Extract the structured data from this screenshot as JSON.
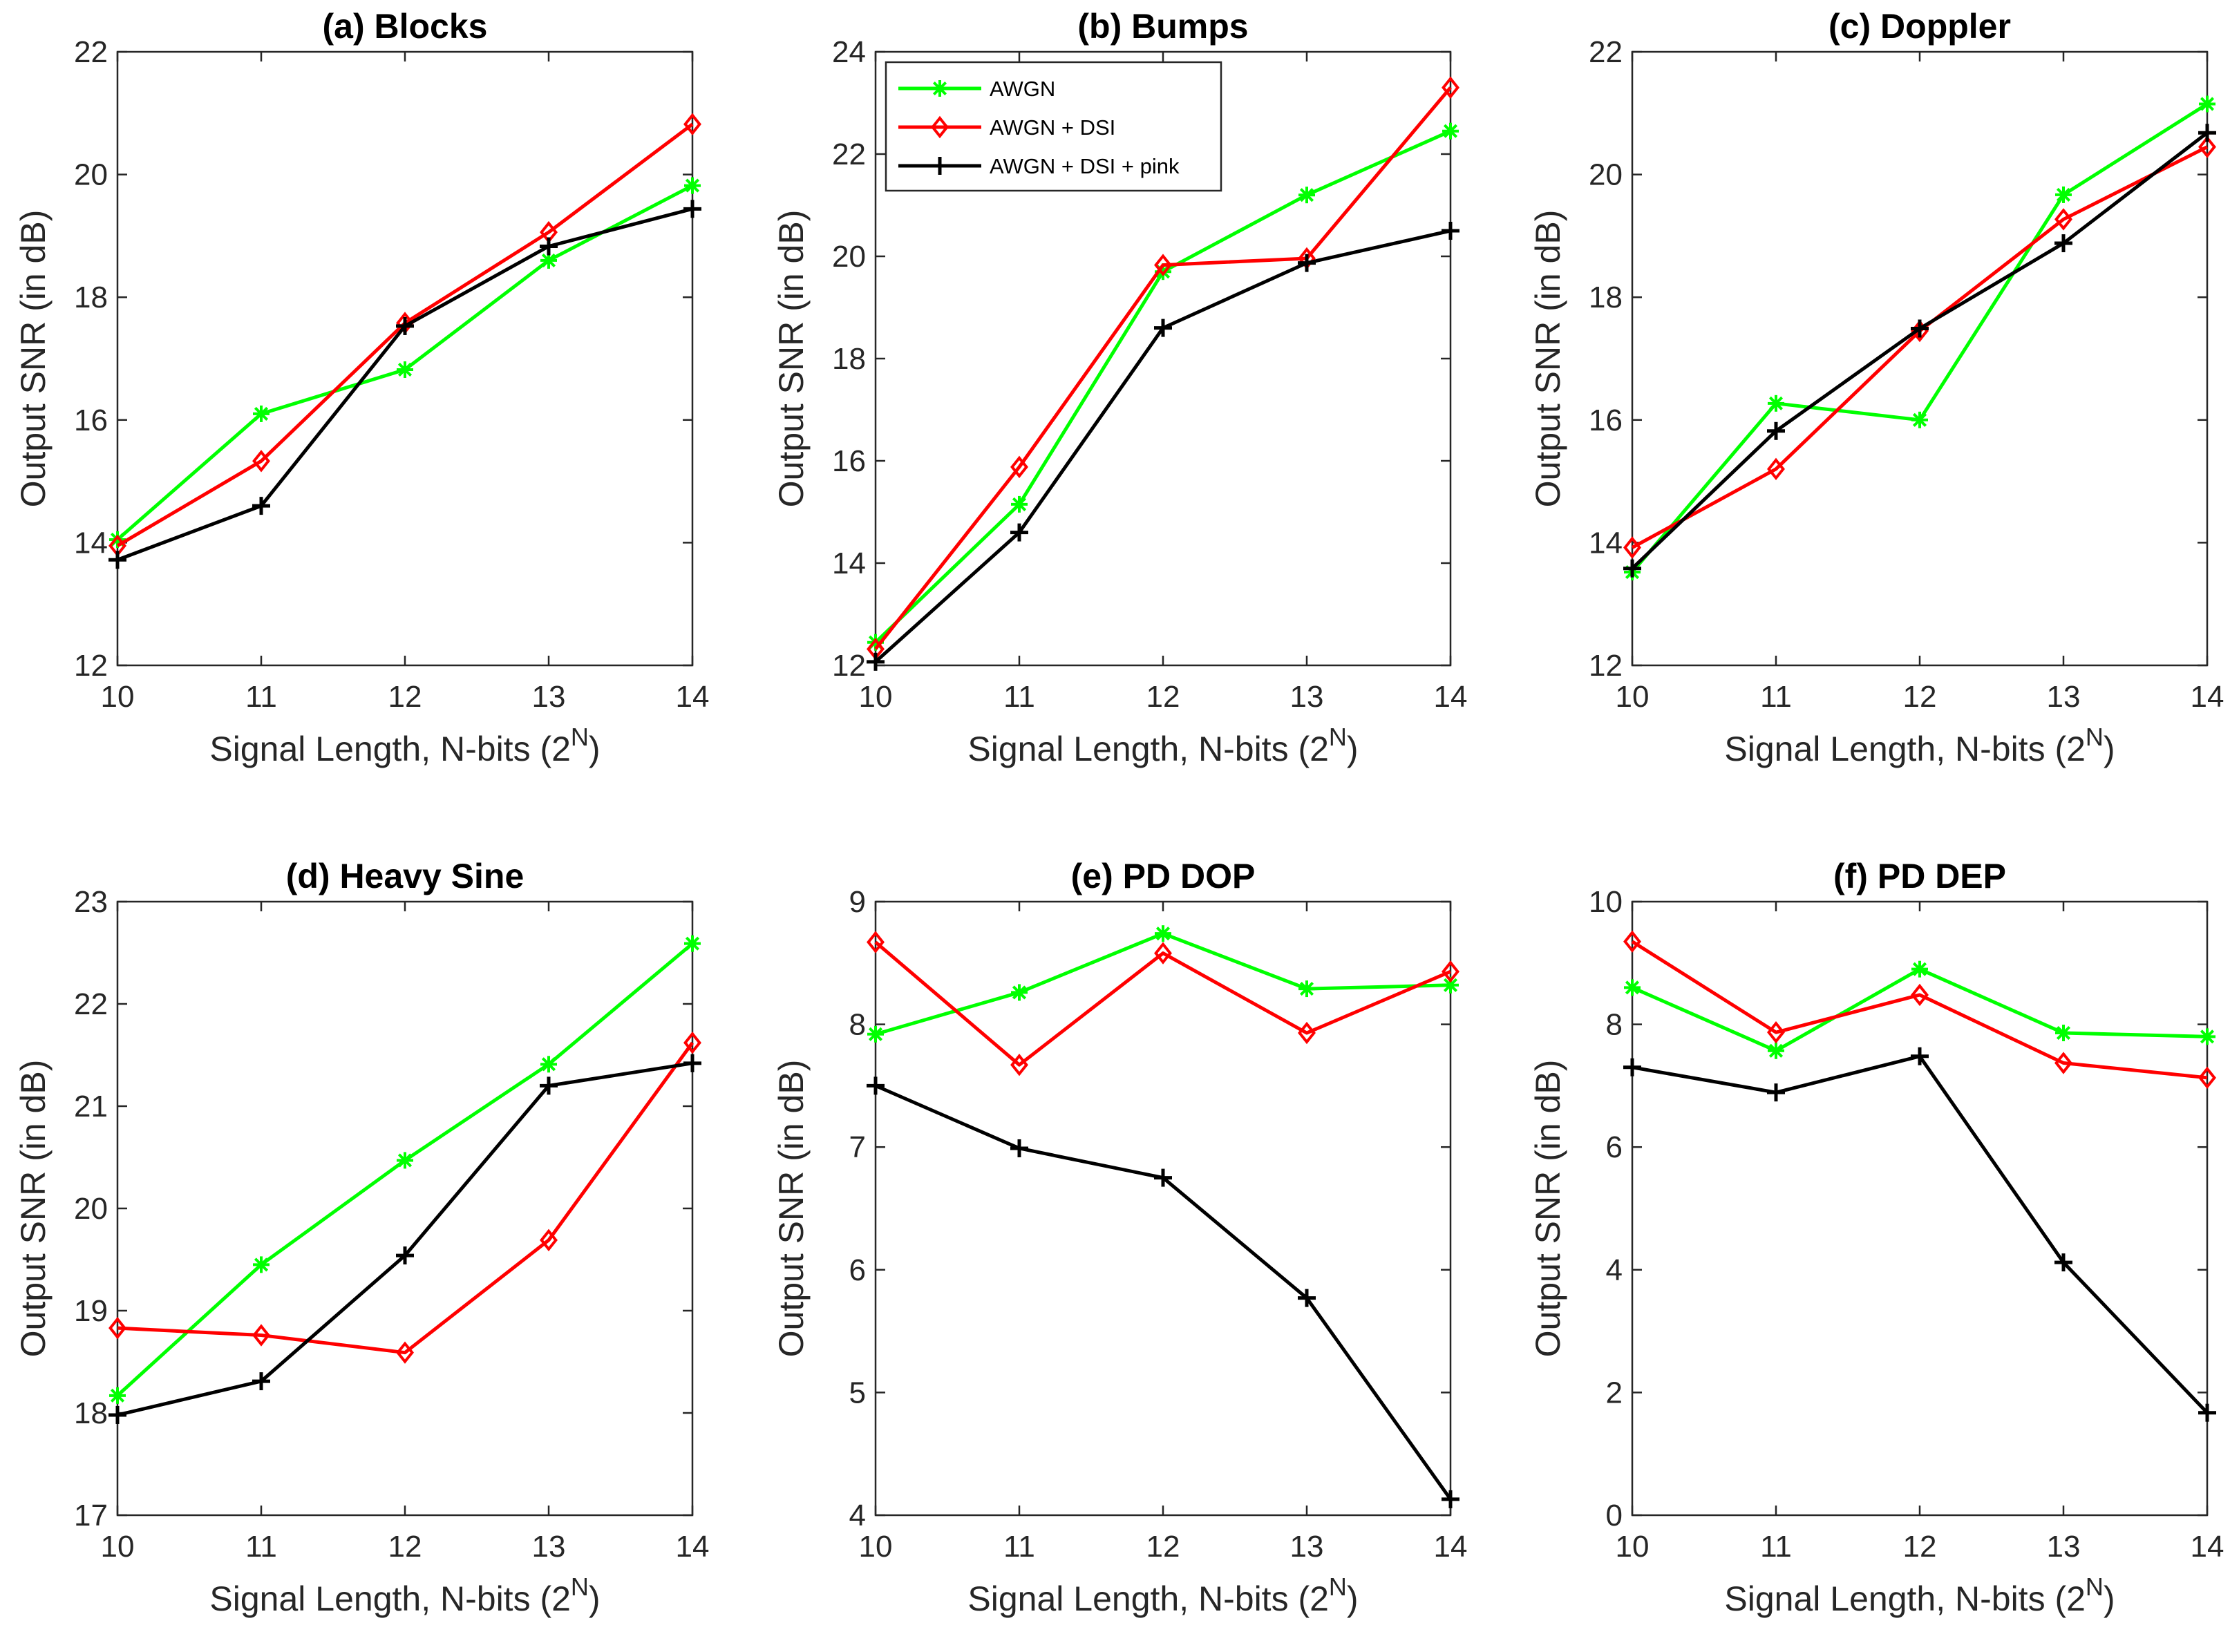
{
  "figure": {
    "panel_order": [
      "a",
      "b",
      "c",
      "d",
      "e",
      "f"
    ]
  },
  "legend": {
    "entries": [
      {
        "label": "AWGN",
        "color": "#00ff00",
        "marker": "asterisk"
      },
      {
        "label": "AWGN + DSI",
        "color": "#ff0000",
        "marker": "diamond"
      },
      {
        "label": "AWGN + DSI + pink",
        "color": "#000000",
        "marker": "plus"
      }
    ]
  },
  "chart_data": [
    {
      "id": "a",
      "type": "line",
      "title": "(a) Blocks",
      "xlabel_main": "Signal Length, N-bits (2",
      "xlabel_sup": "N",
      "xlabel_end": ")",
      "ylabel": "Output SNR (in dB)",
      "x": [
        10,
        11,
        12,
        13,
        14
      ],
      "xlim": [
        10,
        14
      ],
      "ylim": [
        12,
        22
      ],
      "yticks": [
        12,
        14,
        16,
        18,
        20,
        22
      ],
      "series": [
        {
          "name": "AWGN",
          "values": [
            14.05,
            16.1,
            16.82,
            18.6,
            19.82
          ]
        },
        {
          "name": "AWGN + DSI",
          "values": [
            13.95,
            15.33,
            17.58,
            19.06,
            20.82
          ]
        },
        {
          "name": "AWGN + DSI + pink",
          "values": [
            13.72,
            14.6,
            17.53,
            18.83,
            19.44
          ]
        }
      ]
    },
    {
      "id": "b",
      "type": "line",
      "title": "(b) Bumps",
      "xlabel_main": "Signal Length, N-bits (2",
      "xlabel_sup": "N",
      "xlabel_end": ")",
      "ylabel": "Output SNR (in dB)",
      "x": [
        10,
        11,
        12,
        13,
        14
      ],
      "xlim": [
        10,
        14
      ],
      "ylim": [
        12,
        24
      ],
      "yticks": [
        12,
        14,
        16,
        18,
        20,
        22,
        24
      ],
      "show_legend": true,
      "series": [
        {
          "name": "AWGN",
          "values": [
            12.45,
            15.15,
            19.7,
            21.2,
            22.45
          ]
        },
        {
          "name": "AWGN + DSI",
          "values": [
            12.32,
            15.88,
            19.83,
            19.96,
            23.3
          ]
        },
        {
          "name": "AWGN + DSI + pink",
          "values": [
            12.07,
            14.6,
            18.6,
            19.87,
            20.5
          ]
        }
      ]
    },
    {
      "id": "c",
      "type": "line",
      "title": "(c) Doppler",
      "xlabel_main": "Signal Length, N-bits (2",
      "xlabel_sup": "N",
      "xlabel_end": ")",
      "ylabel": "Output SNR (in dB)",
      "x": [
        10,
        11,
        12,
        13,
        14
      ],
      "xlim": [
        10,
        14
      ],
      "ylim": [
        12,
        22
      ],
      "yticks": [
        12,
        14,
        16,
        18,
        20,
        22
      ],
      "series": [
        {
          "name": "AWGN",
          "values": [
            13.52,
            16.27,
            16.0,
            19.67,
            21.15
          ]
        },
        {
          "name": "AWGN + DSI",
          "values": [
            13.92,
            15.2,
            17.45,
            19.27,
            20.45
          ]
        },
        {
          "name": "AWGN + DSI + pink",
          "values": [
            13.58,
            15.82,
            17.49,
            18.88,
            20.68
          ]
        }
      ]
    },
    {
      "id": "d",
      "type": "line",
      "title": "(d) Heavy Sine",
      "xlabel_main": "Signal Length, N-bits (2",
      "xlabel_sup": "N",
      "xlabel_end": ")",
      "ylabel": "Output SNR (in dB)",
      "x": [
        10,
        11,
        12,
        13,
        14
      ],
      "xlim": [
        10,
        14
      ],
      "ylim": [
        17,
        23
      ],
      "yticks": [
        17,
        18,
        19,
        20,
        21,
        22,
        23
      ],
      "series": [
        {
          "name": "AWGN",
          "values": [
            18.17,
            19.45,
            20.47,
            21.41,
            22.59
          ]
        },
        {
          "name": "AWGN + DSI",
          "values": [
            18.83,
            18.76,
            18.59,
            19.69,
            21.62
          ]
        },
        {
          "name": "AWGN + DSI + pink",
          "values": [
            17.98,
            18.31,
            19.54,
            21.2,
            21.42
          ]
        }
      ]
    },
    {
      "id": "e",
      "type": "line",
      "title": "(e) PD DOP",
      "xlabel_main": "Signal Length, N-bits (2",
      "xlabel_sup": "N",
      "xlabel_end": ")",
      "ylabel": "Output SNR (in dB)",
      "x": [
        10,
        11,
        12,
        13,
        14
      ],
      "xlim": [
        10,
        14
      ],
      "ylim": [
        4,
        9
      ],
      "yticks": [
        4,
        5,
        6,
        7,
        8,
        9
      ],
      "series": [
        {
          "name": "AWGN",
          "values": [
            7.92,
            8.26,
            8.74,
            8.29,
            8.32
          ]
        },
        {
          "name": "AWGN + DSI",
          "values": [
            8.67,
            7.67,
            8.58,
            7.93,
            8.43
          ]
        },
        {
          "name": "AWGN + DSI + pink",
          "values": [
            7.5,
            6.99,
            6.75,
            5.77,
            4.13
          ]
        }
      ]
    },
    {
      "id": "f",
      "type": "line",
      "title": "(f) PD DEP",
      "xlabel_main": "Signal Length, N-bits (2",
      "xlabel_sup": "N",
      "xlabel_end": ")",
      "ylabel": "Output SNR (in dB)",
      "x": [
        10,
        11,
        12,
        13,
        14
      ],
      "xlim": [
        10,
        14
      ],
      "ylim": [
        0,
        10
      ],
      "yticks": [
        0,
        2,
        4,
        6,
        8,
        10
      ],
      "series": [
        {
          "name": "AWGN",
          "values": [
            8.6,
            7.57,
            8.9,
            7.86,
            7.8
          ]
        },
        {
          "name": "AWGN + DSI",
          "values": [
            9.35,
            7.87,
            8.48,
            7.37,
            7.13
          ]
        },
        {
          "name": "AWGN + DSI + pink",
          "values": [
            7.3,
            6.89,
            7.48,
            4.12,
            1.67
          ]
        }
      ]
    }
  ]
}
